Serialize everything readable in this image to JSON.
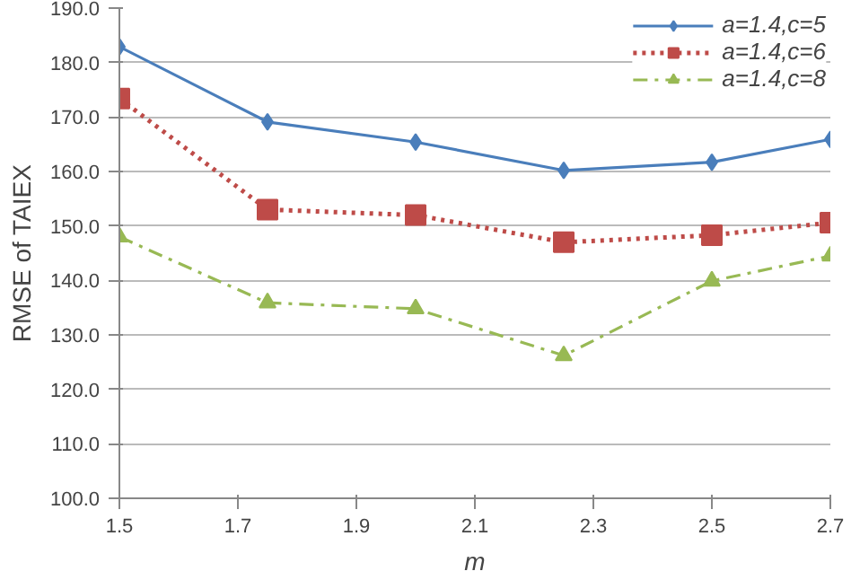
{
  "chart_data": {
    "type": "line",
    "xlabel": "m",
    "ylabel": "RMSE of TAIEX",
    "x": [
      1.5,
      1.75,
      2.0,
      2.25,
      2.5,
      2.7
    ],
    "series": [
      {
        "name": "a=1.4,c=5",
        "color": "#4a7ebb",
        "marker": "diamond",
        "line_style": "solid",
        "values": [
          182.9,
          169.1,
          165.4,
          160.2,
          161.7,
          165.9
        ]
      },
      {
        "name": "a=1.4,c=6",
        "color": "#be4b48",
        "marker": "square",
        "line_style": "dotted",
        "values": [
          173.4,
          153.0,
          152.0,
          147.0,
          148.3,
          150.6
        ]
      },
      {
        "name": "a=1.4,c=8",
        "color": "#98b954",
        "marker": "triangle",
        "line_style": "dashed",
        "values": [
          148.0,
          135.9,
          134.8,
          126.2,
          139.9,
          144.5
        ]
      }
    ],
    "xlim": [
      1.5,
      2.7
    ],
    "xticks": [
      1.5,
      1.7,
      1.9,
      2.1,
      2.3,
      2.5,
      2.7
    ],
    "ylim": [
      100,
      190
    ],
    "yticks": [
      {
        "value": 100,
        "label": "100.0"
      },
      {
        "value": 110,
        "label": "110.0"
      },
      {
        "value": 120,
        "label": "120.0"
      },
      {
        "value": 130,
        "label": "130.0"
      },
      {
        "value": 140,
        "label": "140.0"
      },
      {
        "value": 150,
        "label": "150.0"
      },
      {
        "value": 160,
        "label": "160.0"
      },
      {
        "value": 170,
        "label": "170.0"
      },
      {
        "value": 180,
        "label": "180.0"
      },
      {
        "value": 190,
        "label": "190.0"
      }
    ],
    "grid": "y",
    "legend": "top right"
  }
}
